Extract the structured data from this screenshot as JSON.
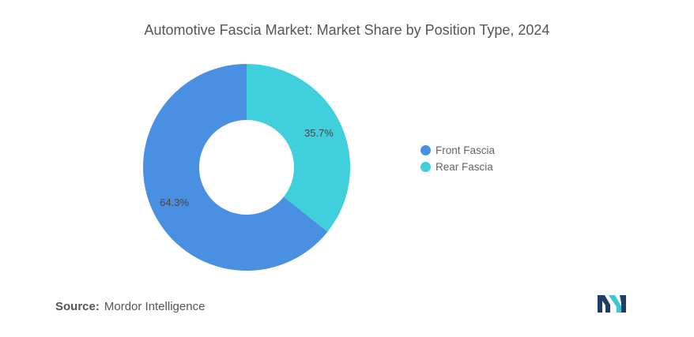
{
  "chart_data": {
    "type": "pie",
    "title": "Automotive Fascia Market: Market Share by Position Type, 2024",
    "categories": [
      "Front Fascia",
      "Rear Fascia"
    ],
    "values": [
      64.3,
      35.7
    ],
    "labels": [
      "64.3%",
      "35.7%"
    ],
    "colors": [
      "#4a90e2",
      "#40d0dc"
    ],
    "donut": true,
    "legend_position": "right"
  },
  "source": {
    "label": "Source:",
    "text": "Mordor Intelligence"
  },
  "logo": {
    "icon": "mordor-intelligence-logo-icon",
    "colors": [
      "#1e3d6b",
      "#3fc6d1"
    ]
  }
}
